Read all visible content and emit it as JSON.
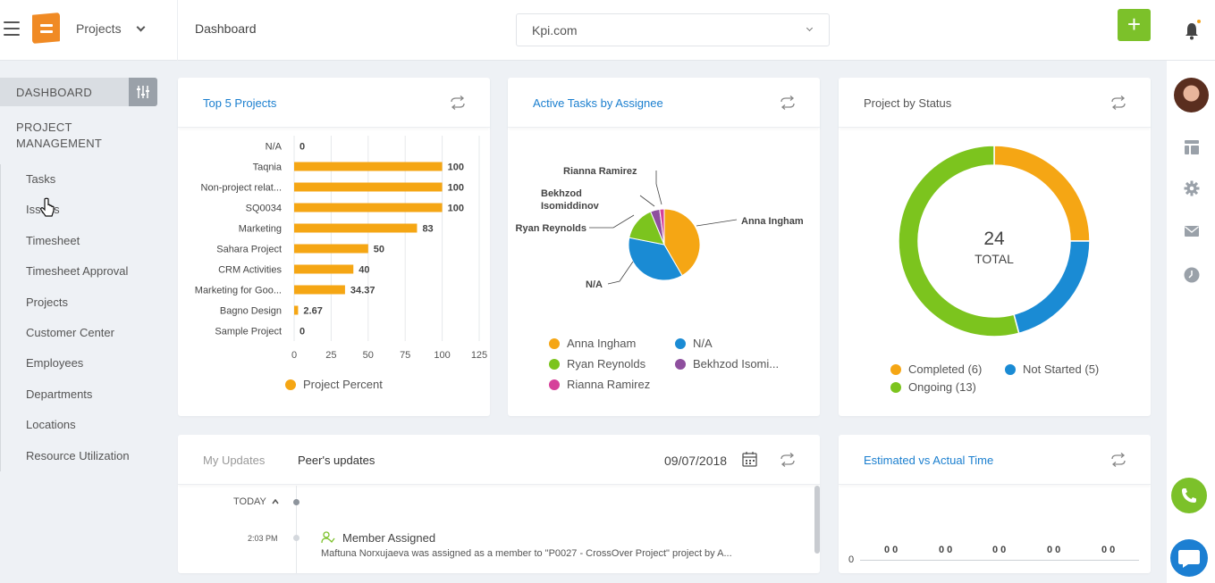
{
  "topbar": {
    "project_selector": "Projects",
    "breadcrumb": "Dashboard",
    "site_selector": "Kpi.com",
    "add_label": "+"
  },
  "sidebar": {
    "dashboard_label": "DASHBOARD",
    "section_label": "PROJECT MANAGEMENT",
    "items": [
      {
        "label": "Tasks"
      },
      {
        "label": "Issues"
      },
      {
        "label": "Timesheet"
      },
      {
        "label": "Timesheet Approval"
      },
      {
        "label": "Projects"
      },
      {
        "label": "Customer Center"
      },
      {
        "label": "Employees"
      },
      {
        "label": "Departments"
      },
      {
        "label": "Locations"
      },
      {
        "label": "Resource Utilization"
      }
    ]
  },
  "cards": {
    "top5": {
      "title": "Top 5 Projects",
      "legend": "Project Percent"
    },
    "active": {
      "title": "Active Tasks by Assignee"
    },
    "status": {
      "title": "Project by Status",
      "center_value": "24",
      "center_label": "TOTAL"
    },
    "updates": {
      "tab_mine": "My Updates",
      "tab_peer": "Peer's updates",
      "date": "09/07/2018",
      "today_label": "TODAY",
      "entry": {
        "time": "2:03 PM",
        "title": "Member Assigned",
        "text": "Maftuna Norxujaeva was assigned as a member to \"P0027 - CrossOver Project\" project by A..."
      }
    },
    "estimated": {
      "title": "Estimated vs Actual Time",
      "y_zero": "0",
      "pairs": [
        "0 0",
        "0 0",
        "0 0",
        "0 0",
        "0 0"
      ]
    }
  },
  "colors": {
    "orange": "#f5a614",
    "blue": "#1a8bd4",
    "green": "#7cc41e",
    "purple": "#8e4f9e",
    "pink": "#d6409a",
    "accent_blue": "#1b7fcf",
    "accent_green": "#7cc12a"
  },
  "chart_data": [
    {
      "type": "bar",
      "orientation": "horizontal",
      "title": "Top 5 Projects",
      "categories": [
        "N/A",
        "Taqnia",
        "Non-project relat...",
        "SQ0034",
        "Marketing",
        "Sahara Project",
        "CRM Activities",
        "Marketing for Goo...",
        "Bagno Design",
        "Sample Project"
      ],
      "series": [
        {
          "name": "Project Percent",
          "values": [
            0,
            100,
            100,
            100,
            83,
            50,
            40,
            34.37,
            2.67,
            0
          ],
          "labels": [
            "0",
            "100",
            "100",
            "100",
            "83",
            "50",
            "40",
            "34.37",
            "2.67",
            "0"
          ]
        }
      ],
      "xlim": [
        0,
        125
      ],
      "xticks": [
        "0",
        "25",
        "50",
        "75",
        "100",
        "125"
      ],
      "grid": true,
      "legend": "bottom"
    },
    {
      "type": "pie",
      "title": "Active Tasks by Assignee",
      "slices": [
        {
          "label": "Anna Ingham",
          "value": 40
        },
        {
          "label": "N/A",
          "value": 35
        },
        {
          "label": "Ryan Reynolds",
          "value": 15
        },
        {
          "label": "Bekhzod Isomiddinov",
          "value": 4
        },
        {
          "label": "Rianna Ramirez",
          "value": 2
        }
      ],
      "legend_labels": [
        "Anna Ingham",
        "N/A",
        "Ryan Reynolds",
        "Bekhzod Isomi...",
        "Rianna Ramirez"
      ],
      "legend": "bottom"
    },
    {
      "type": "pie",
      "variant": "donut",
      "title": "Project by Status",
      "slices": [
        {
          "label": "Completed",
          "value": 6
        },
        {
          "label": "Not Started",
          "value": 5
        },
        {
          "label": "Ongoing",
          "value": 13
        }
      ],
      "legend_labels": [
        "Completed (6)",
        "Not Started (5)",
        "Ongoing (13)"
      ],
      "total": 24,
      "legend": "bottom"
    }
  ]
}
